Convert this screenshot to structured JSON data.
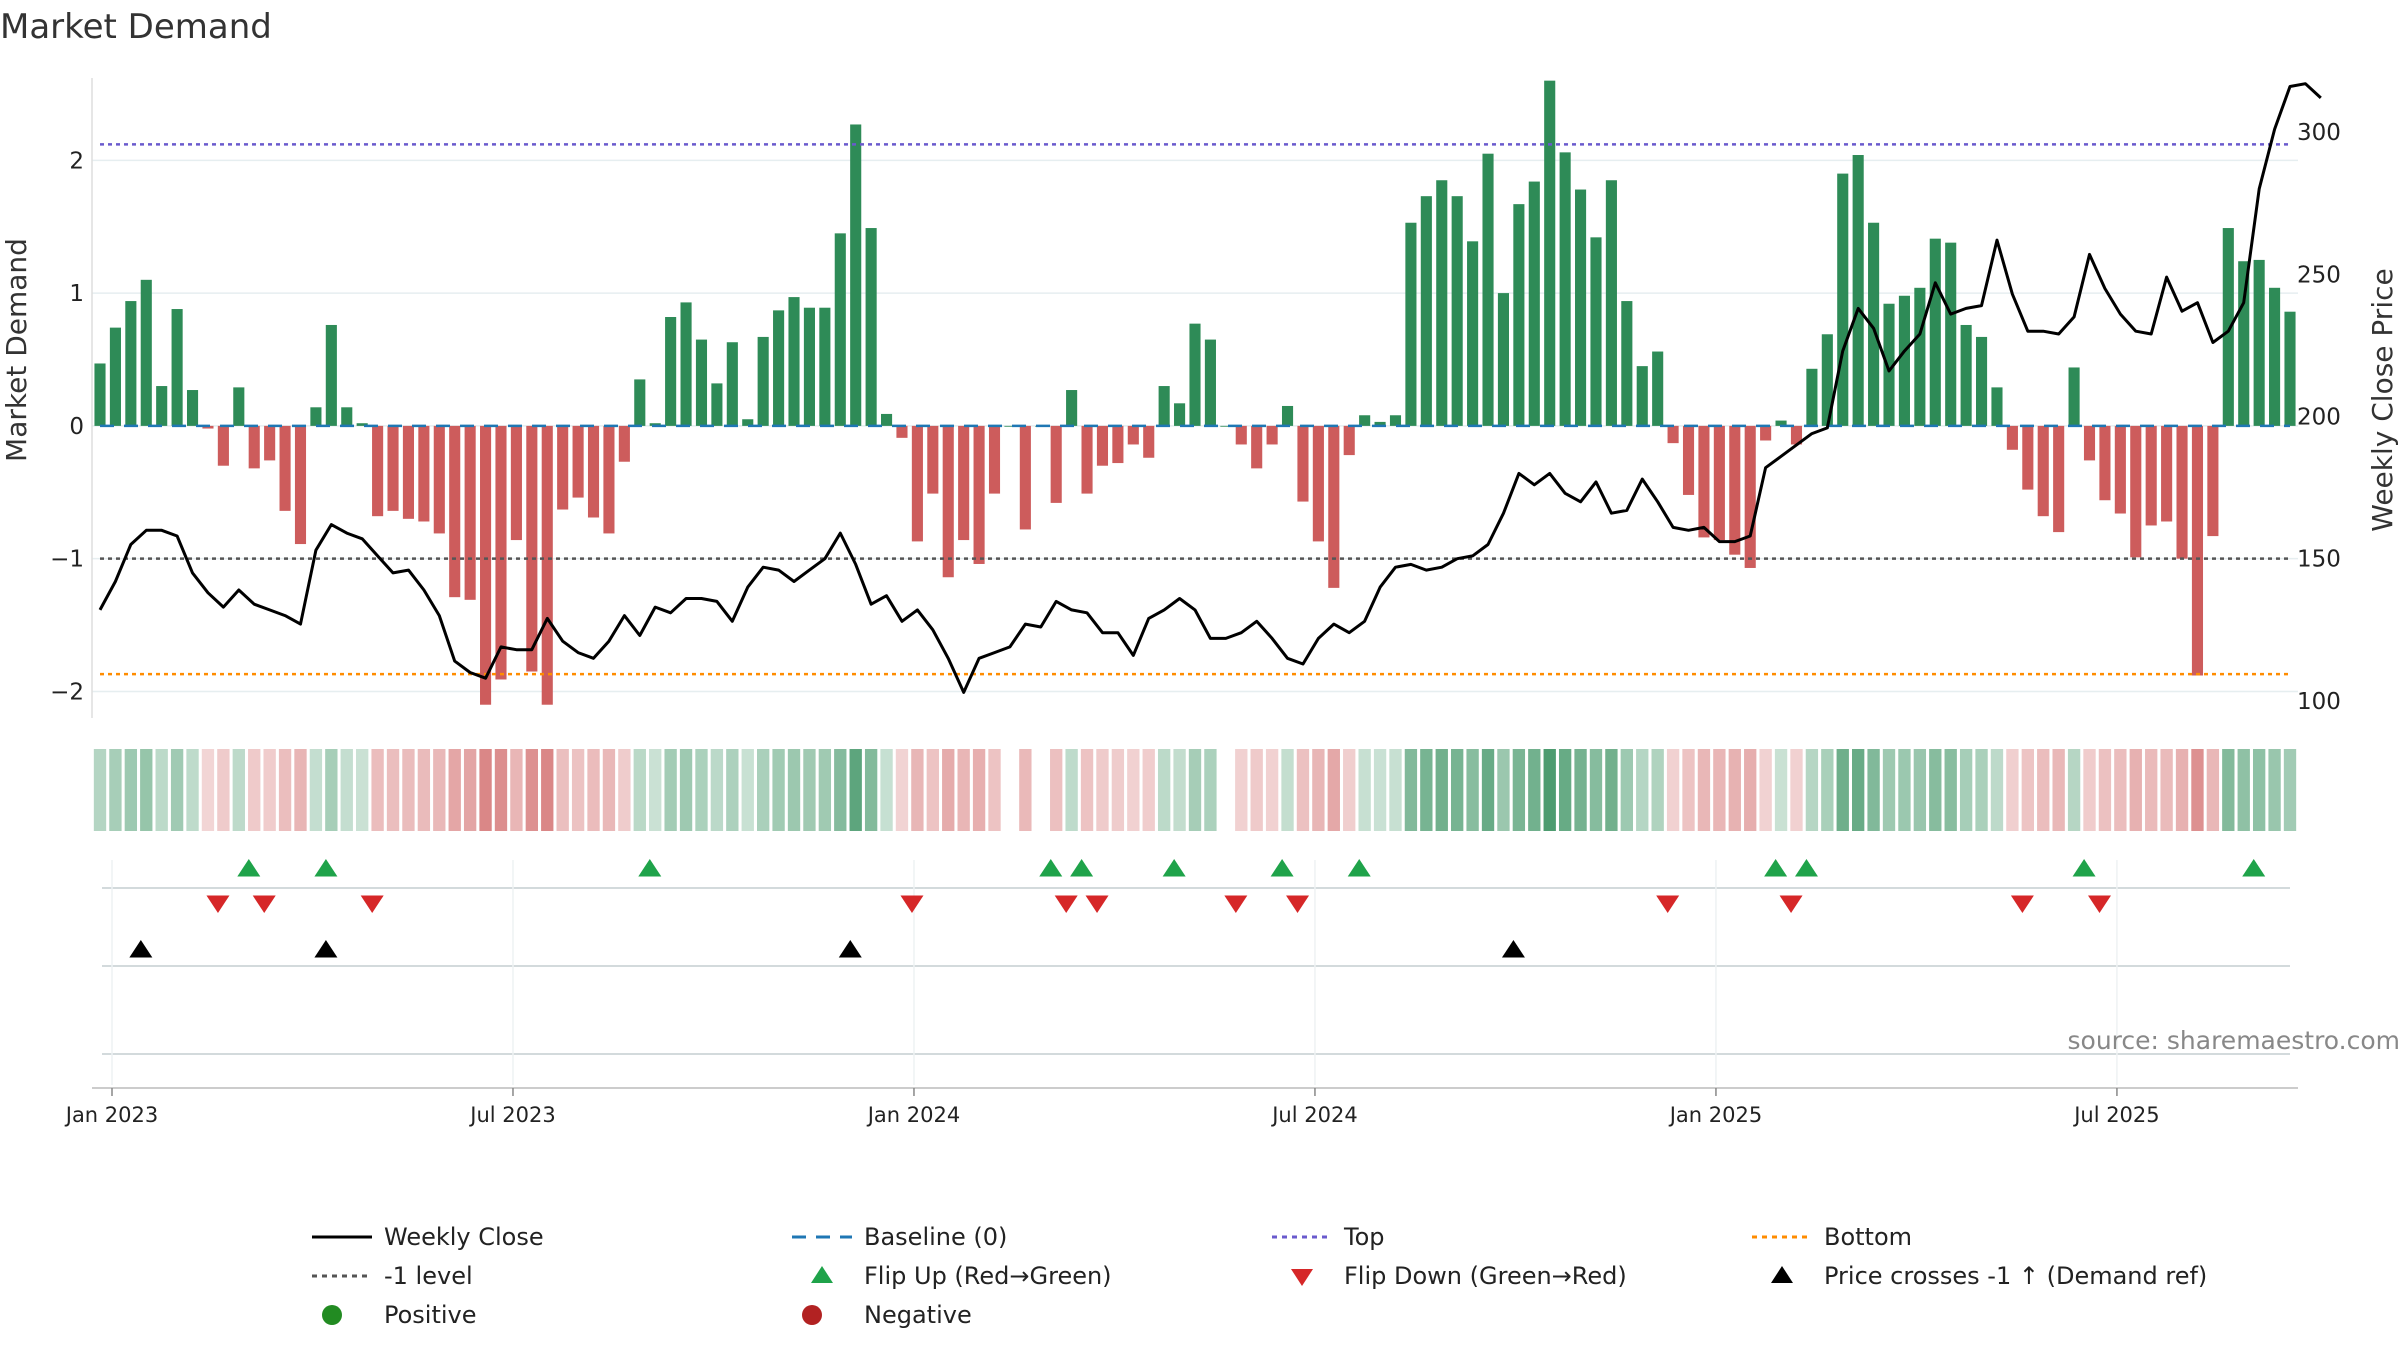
{
  "chart_data": {
    "type": "bar",
    "title": "Market Demand",
    "ylabel": "Market Demand",
    "y2label": "Weekly Close Price",
    "source": "source: sharemaestro.com",
    "ylim": [
      -2.2,
      2.62
    ],
    "y2lim": [
      94,
      319
    ],
    "yticks": [
      {
        "v": 2,
        "label": "2"
      },
      {
        "v": 1,
        "label": "1"
      },
      {
        "v": 0,
        "label": "0"
      },
      {
        "v": -1,
        "label": "−1"
      },
      {
        "v": -2,
        "label": "−2"
      }
    ],
    "y2ticks": [
      {
        "v": 300,
        "label": "300"
      },
      {
        "v": 250,
        "label": "250"
      },
      {
        "v": 200,
        "label": "200"
      },
      {
        "v": 150,
        "label": "150"
      },
      {
        "v": 100,
        "label": "100"
      }
    ],
    "xticks": [
      {
        "week": 0,
        "label": "Jan 2023"
      },
      {
        "week": 26,
        "label": "Jul 2023"
      },
      {
        "week": 52,
        "label": "Jan 2024"
      },
      {
        "week": 78,
        "label": "Jul 2024"
      },
      {
        "week": 104,
        "label": "Jan 2025"
      },
      {
        "week": 130,
        "label": "Jul 2025"
      }
    ],
    "top_level": 2.12,
    "bottom_level": -1.87,
    "minus_one_level": -1,
    "demand": [
      0.47,
      0.74,
      0.94,
      1.1,
      0.3,
      0.88,
      0.27,
      -0.02,
      -0.3,
      0.29,
      -0.32,
      -0.26,
      -0.64,
      -0.89,
      0.14,
      0.76,
      0.14,
      0.02,
      -0.68,
      -0.64,
      -0.7,
      -0.72,
      -0.81,
      -1.29,
      -1.31,
      -2.1,
      -1.91,
      -0.86,
      -1.85,
      -2.1,
      -0.63,
      -0.54,
      -0.69,
      -0.81,
      -0.27,
      0.35,
      0.02,
      0.82,
      0.93,
      0.65,
      0.32,
      0.63,
      0.05,
      0.67,
      0.87,
      0.97,
      0.89,
      0.89,
      1.45,
      2.27,
      1.49,
      0.09,
      -0.09,
      -0.87,
      -0.51,
      -1.14,
      -0.86,
      -1.04,
      -0.51,
      0.0,
      -0.78,
      0.0,
      -0.58,
      0.27,
      -0.51,
      -0.3,
      -0.28,
      -0.14,
      -0.24,
      0.3,
      0.17,
      0.77,
      0.65,
      0.0,
      -0.14,
      -0.32,
      -0.14,
      0.15,
      -0.57,
      -0.87,
      -1.22,
      -0.22,
      0.08,
      0.03,
      0.08,
      1.53,
      1.73,
      1.85,
      1.73,
      1.39,
      2.05,
      1.0,
      1.67,
      1.84,
      2.6,
      2.06,
      1.78,
      1.42,
      1.85,
      0.94,
      0.45,
      0.56,
      -0.13,
      -0.52,
      -0.84,
      -0.86,
      -0.97,
      -1.07,
      -0.11,
      0.04,
      -0.14,
      0.43,
      0.69,
      1.9,
      2.04,
      1.53,
      0.92,
      0.98,
      1.04,
      1.41,
      1.38,
      0.76,
      0.67,
      0.29,
      -0.18,
      -0.48,
      -0.68,
      -0.8,
      0.44,
      -0.26,
      -0.56,
      -0.66,
      -0.99,
      -0.75,
      -0.72,
      -1.0,
      -1.88,
      -0.83,
      1.49,
      1.24,
      1.25,
      1.04,
      0.86
    ],
    "price": [
      132,
      142,
      155,
      160,
      160,
      158,
      145,
      138,
      133,
      139,
      134,
      132,
      130,
      127,
      153,
      162,
      159,
      157,
      151,
      145,
      146,
      139,
      130,
      114,
      110,
      108,
      119,
      118,
      118,
      129,
      121,
      117,
      115,
      121,
      130,
      123,
      133,
      131,
      136,
      136,
      135,
      128,
      140,
      147,
      146,
      142,
      146,
      150,
      159,
      148,
      134,
      137,
      128,
      132,
      125,
      115,
      103,
      115,
      117,
      119,
      127,
      126,
      135,
      132,
      131,
      124,
      124,
      116,
      129,
      132,
      136,
      132,
      122,
      122,
      124,
      128,
      122,
      115,
      113,
      122,
      127,
      124,
      128,
      140,
      147,
      148,
      146,
      147,
      150,
      151,
      155,
      166,
      180,
      176,
      180,
      173,
      170,
      177,
      166,
      167,
      178,
      170,
      161,
      160,
      161,
      156,
      156,
      158,
      182,
      186,
      190,
      194,
      196,
      223,
      238,
      231,
      216,
      223,
      229,
      247,
      236,
      238,
      239,
      262,
      243,
      230,
      230,
      229,
      235,
      257,
      245,
      236,
      230,
      229,
      249,
      237,
      240,
      226,
      230,
      240,
      280,
      301,
      316,
      317,
      312
    ],
    "flip_up_weeks": [
      9,
      14,
      35,
      61,
      63,
      69,
      76,
      81,
      108,
      110,
      128,
      139
    ],
    "flip_down_weeks": [
      7,
      10,
      17,
      52,
      62,
      64,
      73,
      77,
      101,
      109,
      124,
      129
    ],
    "price_cross_weeks": [
      2,
      14,
      48,
      91
    ],
    "legend": [
      {
        "key": "weekly_close",
        "label": "Weekly Close",
        "color": "#000000",
        "kind": "line"
      },
      {
        "key": "baseline",
        "label": "Baseline (0)",
        "color": "#1f77b4",
        "kind": "dash"
      },
      {
        "key": "top",
        "label": "Top",
        "color": "#6a5acd",
        "kind": "dot"
      },
      {
        "key": "bottom",
        "label": "Bottom",
        "color": "#ff8c00",
        "kind": "dot"
      },
      {
        "key": "minus_one",
        "label": "-1 level",
        "color": "#555555",
        "kind": "dot"
      },
      {
        "key": "flip_up",
        "label": "Flip Up (Red→Green)",
        "color": "#1fa34a",
        "kind": "tri_up"
      },
      {
        "key": "flip_down",
        "label": "Flip Down (Green→Red)",
        "color": "#d62728",
        "kind": "tri_down"
      },
      {
        "key": "price_cross",
        "label": "Price crosses -1 ↑ (Demand ref)",
        "color": "#000000",
        "kind": "tri_up"
      },
      {
        "key": "positive",
        "label": "Positive",
        "color": "#228b22",
        "kind": "dot_marker"
      },
      {
        "key": "negative",
        "label": "Negative",
        "color": "#b22222",
        "kind": "dot_marker"
      }
    ],
    "colors": {
      "positive_bar": "#2e8b57",
      "negative_bar": "#cd5c5c",
      "price_line": "#000000",
      "baseline": "#1f77b4",
      "top_line": "#6a5acd",
      "bottom_line": "#ff8c00",
      "minus_one_line": "#555555",
      "flip_up": "#1fa34a",
      "flip_down": "#d62728",
      "price_cross": "#000000"
    }
  }
}
